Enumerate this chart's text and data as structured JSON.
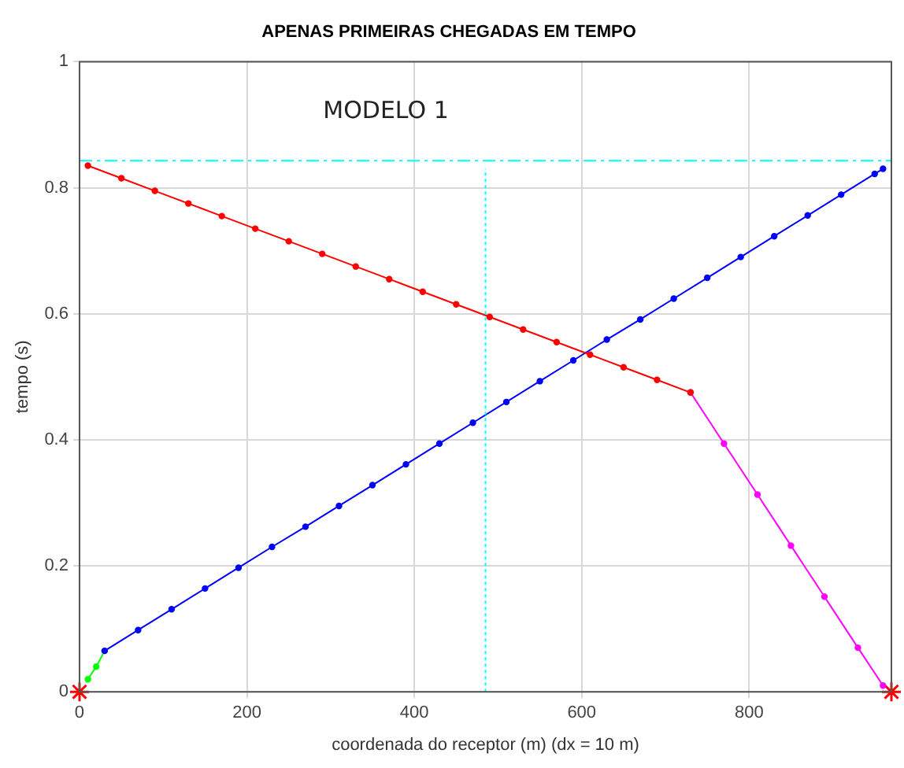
{
  "chart_data": {
    "type": "line",
    "title": "APENAS PRIMEIRAS CHEGADAS EM TEMPO",
    "xlabel": "coordenada do receptor (m) (dx = 10 m)",
    "ylabel": "tempo (s)",
    "annotations": [
      "MODELO 1"
    ],
    "xlim": [
      0,
      970
    ],
    "xticks": [
      0,
      200,
      400,
      600,
      800
    ],
    "ylim": [
      0,
      1
    ],
    "yticks": [
      0,
      0.2,
      0.4,
      0.6,
      0.8,
      1
    ],
    "grid": true,
    "legend": false,
    "marker": "circle",
    "line_style": "solid",
    "ref_lines": [
      {
        "axis": "y",
        "value": 0.843,
        "color": "#00ffff",
        "line_style": "dashed"
      }
    ],
    "series": [
      {
        "color": "#00ffff",
        "line_style": "dotted",
        "marker": "none",
        "x": [
          485,
          485
        ],
        "values": [
          0,
          0.83
        ]
      },
      {
        "color": "#ff0000",
        "x": [
          10,
          50,
          90,
          130,
          170,
          210,
          250,
          290,
          330,
          370,
          410,
          450,
          490,
          530,
          570,
          610,
          650,
          690,
          730
        ],
        "values": [
          0.835,
          0.815,
          0.795,
          0.775,
          0.755,
          0.735,
          0.715,
          0.695,
          0.675,
          0.655,
          0.635,
          0.615,
          0.595,
          0.575,
          0.555,
          0.535,
          0.515,
          0.495,
          0.475
        ]
      },
      {
        "color": "#0000ff",
        "x": [
          30,
          70,
          110,
          150,
          190,
          230,
          270,
          310,
          350,
          390,
          430,
          470,
          510,
          550,
          590,
          630,
          670,
          710,
          750,
          790,
          830,
          870,
          910,
          950,
          960
        ],
        "values": [
          0.065,
          0.098,
          0.131,
          0.164,
          0.197,
          0.23,
          0.262,
          0.295,
          0.328,
          0.361,
          0.394,
          0.427,
          0.46,
          0.493,
          0.526,
          0.559,
          0.591,
          0.624,
          0.657,
          0.69,
          0.723,
          0.756,
          0.789,
          0.822,
          0.83
        ]
      },
      {
        "color": "#ff00ff",
        "x": [
          730,
          770,
          810,
          850,
          890,
          930,
          960
        ],
        "values": [
          0.475,
          0.394,
          0.313,
          0.232,
          0.151,
          0.07,
          0.01
        ]
      },
      {
        "color": "#00ff00",
        "x": [
          10,
          20,
          30
        ],
        "values": [
          0.02,
          0.04,
          0.065
        ]
      },
      {
        "type": "scatter",
        "color": "#ff0000",
        "marker": "cross",
        "x": [
          0,
          970
        ],
        "values": [
          0,
          0
        ]
      }
    ]
  }
}
